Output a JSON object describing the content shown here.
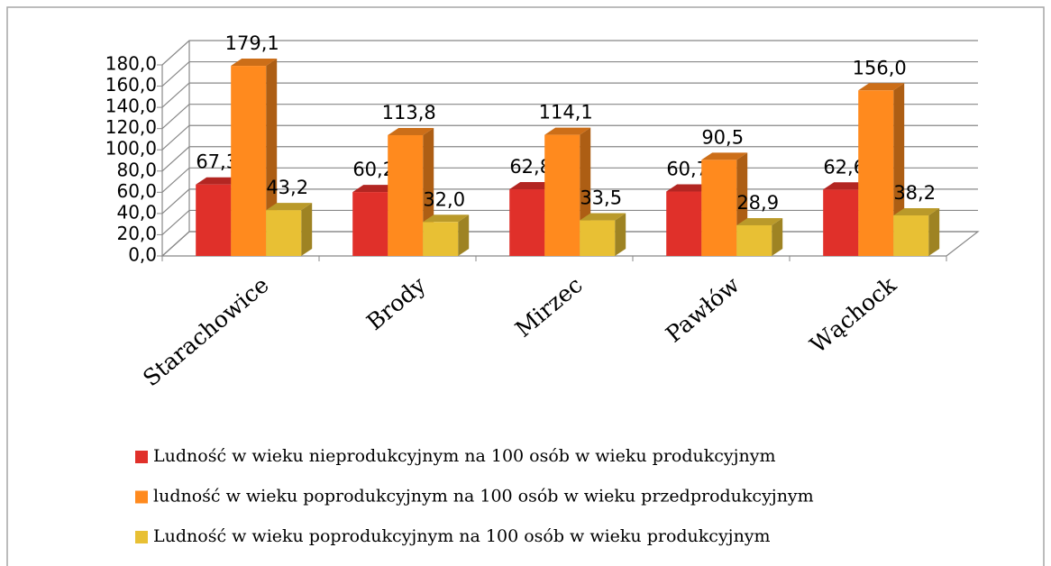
{
  "chart_data": {
    "type": "bar3d",
    "categories": [
      "Starachowice",
      "Brody",
      "Mirzec",
      "Pawłów",
      "Wąchock"
    ],
    "series": [
      {
        "name": "Ludność w wieku nieprodukcyjnym na 100 osób w wieku produkcyjnym",
        "color": "#e0302a",
        "values": [
          67.3,
          60.2,
          62.8,
          60.7,
          62.6
        ],
        "value_labels": [
          "67,3",
          "60,2",
          "62,8",
          "60,7",
          "62,6"
        ]
      },
      {
        "name": "ludność w wieku poprodukcyjnym na 100 osób w wieku przedprodukcyjnym",
        "color": "#ff8a1e",
        "values": [
          179.1,
          113.8,
          114.1,
          90.5,
          156.0
        ],
        "value_labels": [
          "179,1",
          "113,8",
          "114,1",
          "90,5",
          "156,0"
        ]
      },
      {
        "name": "Ludność w wieku poprodukcyjnym na 100 osób w wieku produkcyjnym",
        "color": "#e8c034",
        "values": [
          43.2,
          32.0,
          33.5,
          28.9,
          38.2
        ],
        "value_labels": [
          "43,2",
          "32,0",
          "33,5",
          "28,9",
          "38,2"
        ]
      }
    ],
    "ylim": [
      0,
      180
    ],
    "yticks": [
      {
        "value": 0,
        "label": "0,0"
      },
      {
        "value": 20,
        "label": "20,0"
      },
      {
        "value": 40,
        "label": "40,0"
      },
      {
        "value": 60,
        "label": "60,0"
      },
      {
        "value": 80,
        "label": "80,0"
      },
      {
        "value": 100,
        "label": "100,0"
      },
      {
        "value": 120,
        "label": "120,0"
      },
      {
        "value": 140,
        "label": "140,0"
      },
      {
        "value": 160,
        "label": "160,0"
      },
      {
        "value": 180,
        "label": "180,0"
      }
    ],
    "grid": true,
    "legend": "bottom"
  }
}
